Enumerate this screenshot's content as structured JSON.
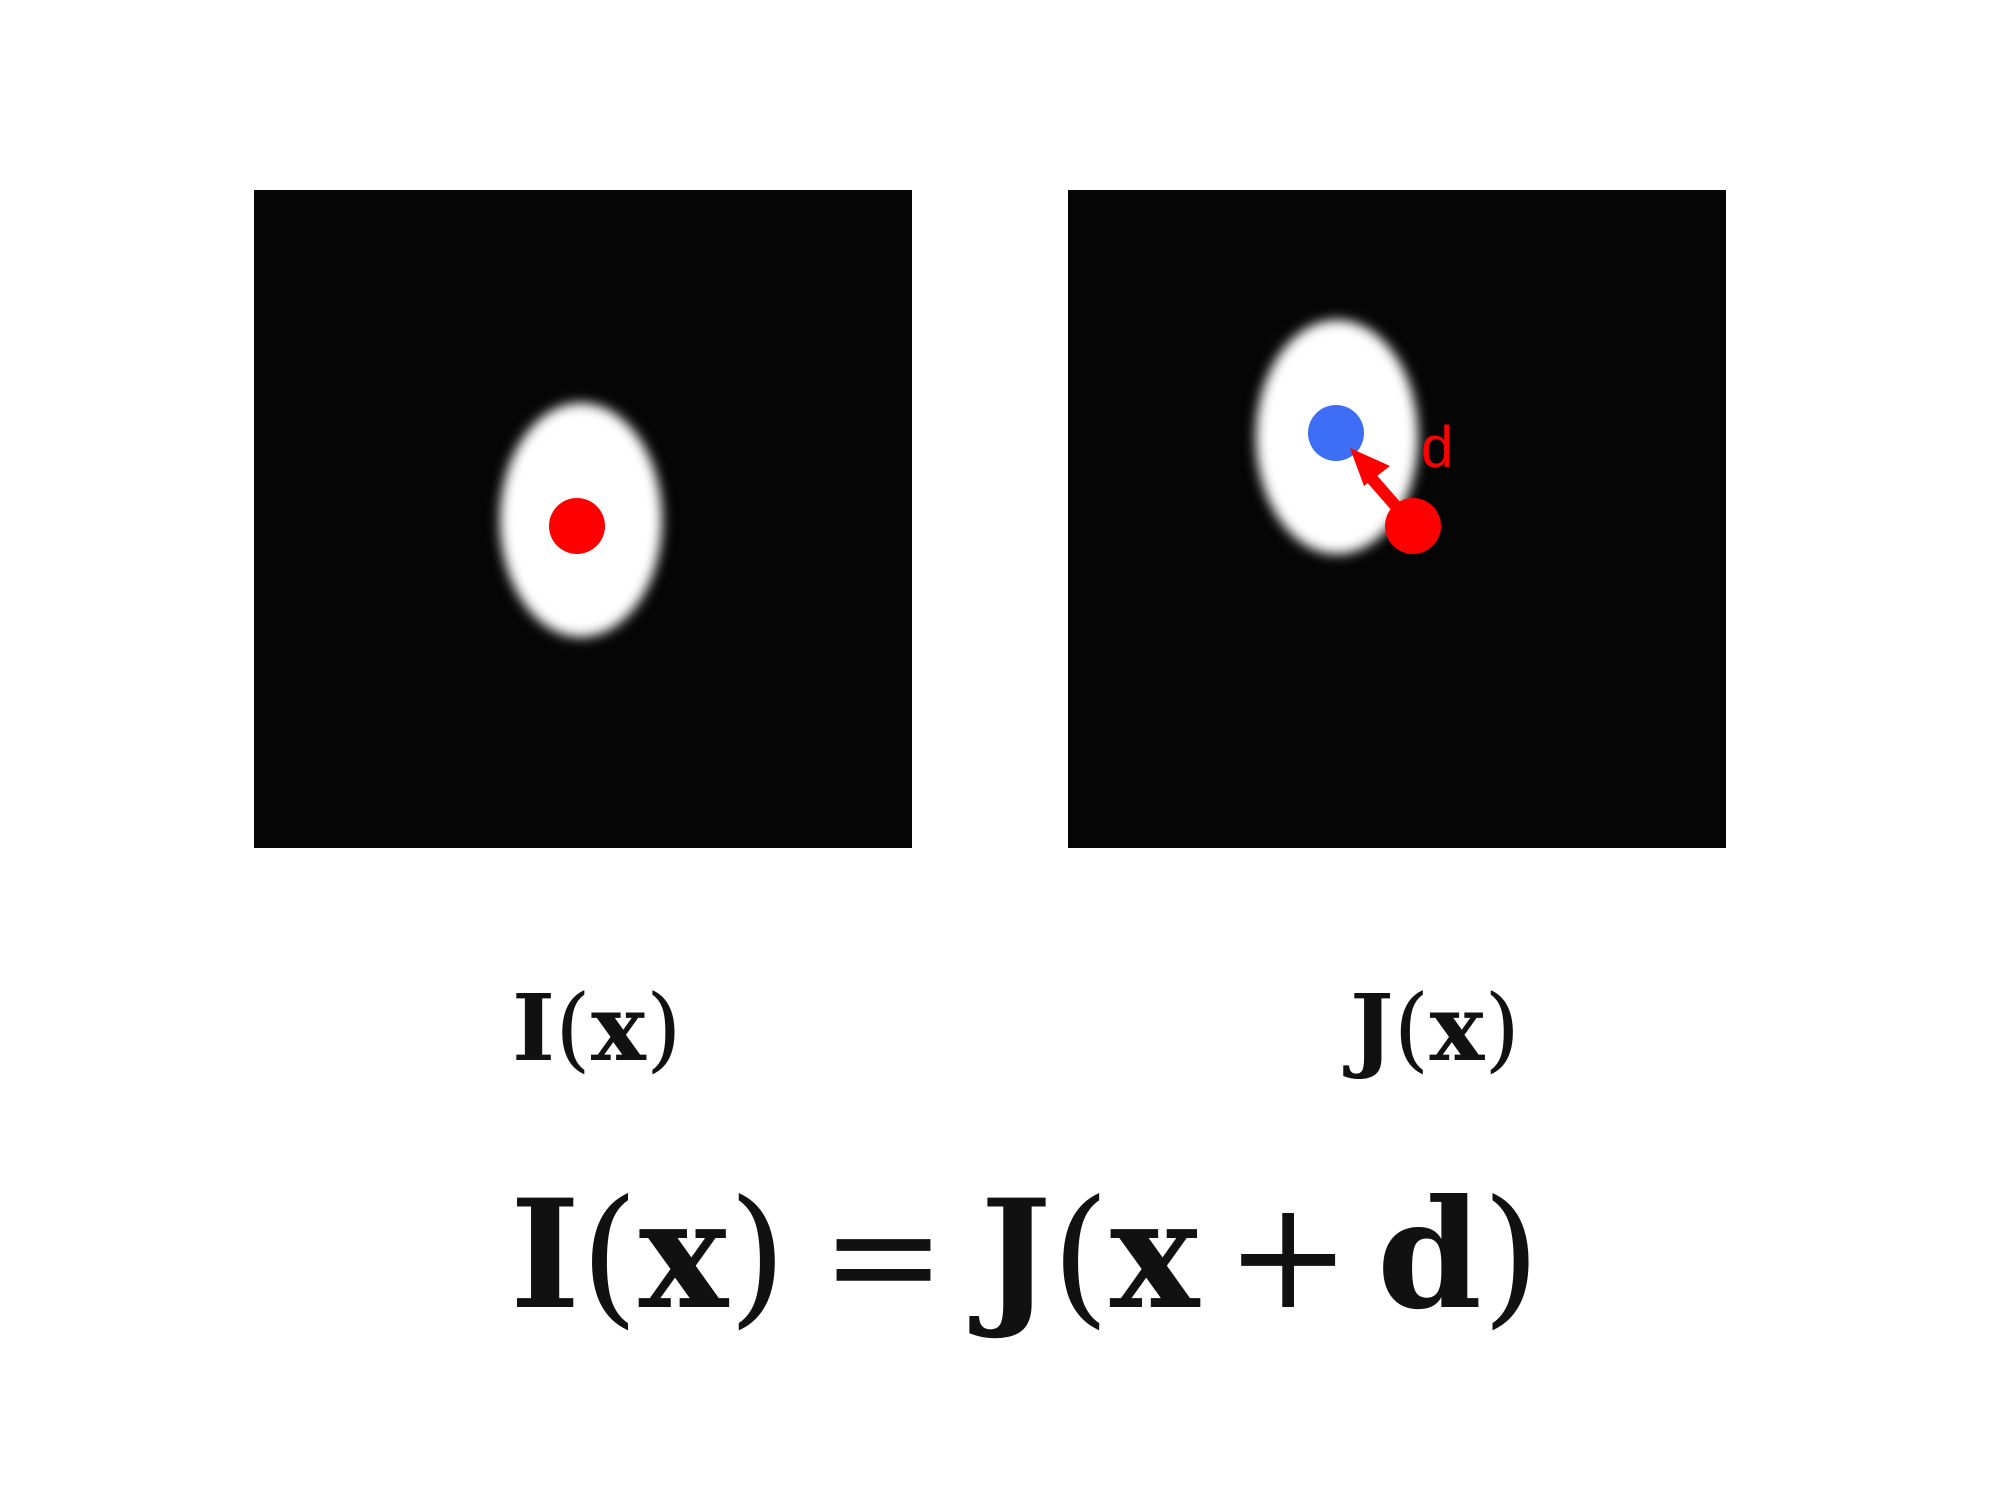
{
  "left_image": {
    "label": {
      "symbol": "I",
      "open": "(",
      "arg": "x",
      "close": ")"
    },
    "point_color": "#ff0000"
  },
  "right_image": {
    "label": {
      "symbol": "J",
      "open": "(",
      "arg": "x",
      "close": ")"
    },
    "displacement_label": "d",
    "original_point_color": "#ff0000",
    "shifted_point_color": "#3d6ef5",
    "arrow_color": "#ff0000"
  },
  "equation": {
    "lhs_symbol": "I",
    "lhs_open": "(",
    "lhs_arg": "x",
    "lhs_close": ")",
    "equals": "=",
    "rhs_symbol": "J",
    "rhs_open": "(",
    "rhs_arg": "x",
    "plus": "+",
    "rhs_displacement": "d",
    "rhs_close": ")"
  },
  "colors": {
    "background": "#ffffff",
    "panel_background": "#050505",
    "blob": "#ffffff",
    "text": "#111111"
  }
}
